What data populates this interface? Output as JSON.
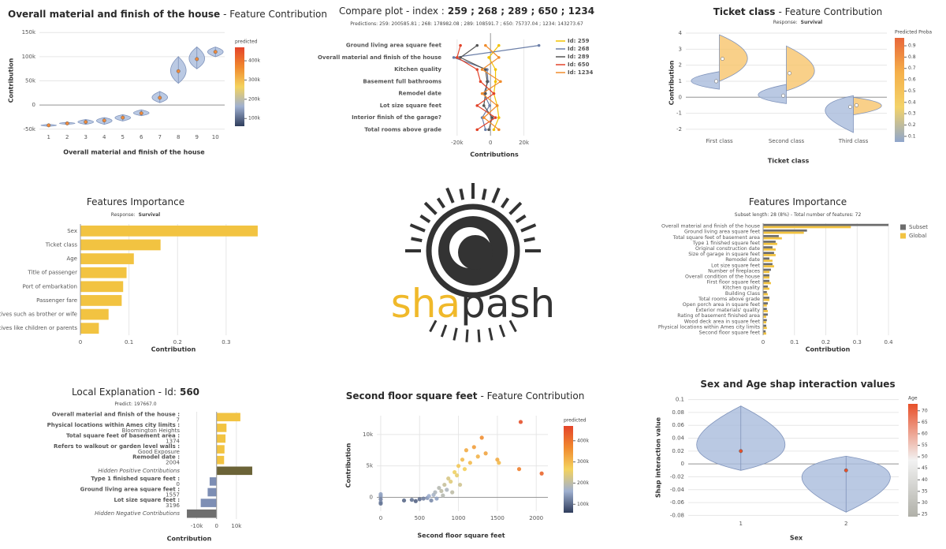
{
  "logo": {
    "text_left": "sha",
    "text_right": "pash"
  },
  "chart_data": [
    {
      "type": "violin",
      "title": [
        {
          "text": "Overall material and finish of the house",
          "bold": true
        },
        {
          "text": "- Feature Contribution"
        }
      ],
      "xlabel": "Overall material and finish of the house",
      "ylabel": "Contribution",
      "categories": [
        "1",
        "2",
        "3",
        "4",
        "5",
        "6",
        "7",
        "8",
        "9",
        "10"
      ],
      "series": [
        {
          "color": "#a9bcdc",
          "min": [
            -44000,
            -40000,
            -40000,
            -40000,
            -33000,
            -22000,
            5000,
            45000,
            75000,
            100000
          ],
          "median": [
            -42000,
            -38000,
            -35000,
            -32000,
            -26000,
            -17000,
            15000,
            70000,
            95000,
            110000
          ],
          "max": [
            -40000,
            -36000,
            -30000,
            -26000,
            -20000,
            -10000,
            28000,
            100000,
            120000,
            120000
          ]
        }
      ],
      "point_color": "#f08a3c",
      "ylim": [
        -52000,
        152000
      ],
      "yticks": [
        {
          "value": -50000,
          "label": "-50k"
        },
        0,
        {
          "value": 50000,
          "label": "50k"
        },
        {
          "value": 100000,
          "label": "100k"
        },
        {
          "value": 150000,
          "label": "150k"
        }
      ],
      "grid": true,
      "colorbar": {
        "title": "predicted",
        "lim": [
          60000,
          470000
        ],
        "colors": [
          "#2f3d5c",
          "#9fb0d0",
          "#f4d35e",
          "#f0892e",
          "#e4442a"
        ],
        "ticks": [
          {
            "value": 100000,
            "label": "100k"
          },
          {
            "value": 200000,
            "label": "200k"
          },
          {
            "value": 300000,
            "label": "300k"
          },
          {
            "value": 400000,
            "label": "400k"
          }
        ]
      }
    },
    {
      "type": "line",
      "title": [
        {
          "text": "Compare plot - index :"
        },
        {
          "text": "259 ; 268 ; 289 ; 650 ; 1234",
          "bold": true
        }
      ],
      "subtitle": [
        {
          "text": "Predictions: 259: 200585.81 ; 268: 178982.08 ; 289: 108591.7 ; 650: 75737.04 ; 1234: 143273.67"
        }
      ],
      "xlabel": "Contributions",
      "categories": [
        "Ground living area square feet",
        "Overall material and finish of the house",
        "Kitchen quality",
        "Basement full bathrooms",
        "Remodel date",
        "Lot size square feet",
        "Interior finish of the garage?",
        "Total rooms above grade"
      ],
      "series": [
        {
          "name": "Id: 259",
          "color": "#f2c200",
          "values": [
            5000,
            -1000,
            3000,
            3000,
            2000,
            4000,
            5000,
            2000
          ]
        },
        {
          "name": "Id: 268",
          "color": "#6c7fa8",
          "values": [
            29000,
            -22000,
            -2000,
            -1500,
            -4000,
            -500,
            -5000,
            -3000
          ]
        },
        {
          "name": "Id: 289",
          "color": "#555555",
          "values": [
            -8000,
            -18000,
            -3000,
            -2000,
            -3000,
            -4000,
            1000,
            -1000
          ]
        },
        {
          "name": "Id: 650",
          "color": "#e2432a",
          "values": [
            -18000,
            -20000,
            -8000,
            -6000,
            2000,
            -8000,
            3000,
            -8000
          ]
        },
        {
          "name": "Id: 1234",
          "color": "#f08c2c",
          "values": [
            -3000,
            5000,
            -5000,
            6000,
            -5000,
            4000,
            -4000,
            5000
          ]
        }
      ],
      "xlim": [
        -27000,
        32000
      ],
      "xticks": [
        {
          "value": -20000,
          "label": "-20k"
        },
        0,
        {
          "value": 20000,
          "label": "20k"
        }
      ],
      "grid": true
    },
    {
      "type": "violin",
      "title": [
        {
          "text": "Ticket class",
          "bold": true
        },
        {
          "text": "- Feature Contribution"
        }
      ],
      "subtitle": [
        {
          "text": "Response:"
        },
        {
          "text": "Survival",
          "bold": true
        }
      ],
      "xlabel": "Ticket class",
      "ylabel": "Contribution",
      "categories": [
        "First class",
        "Second class",
        "Third class"
      ],
      "series": [
        {
          "color": "#a9bcdc",
          "min": [
            0.5,
            -0.4,
            -2.2
          ],
          "median": [
            1.0,
            0.1,
            -0.6
          ],
          "max": [
            1.6,
            0.8,
            0.1
          ]
        },
        {
          "color": "#f8c46c",
          "min": [
            1.0,
            0.4,
            -1.1
          ],
          "median": [
            2.4,
            1.5,
            -0.5
          ],
          "max": [
            3.9,
            3.2,
            0.0
          ]
        }
      ],
      "ylim": [
        -2.3,
        4.2
      ],
      "yticks": [
        -2,
        -1,
        0,
        1,
        2,
        3,
        4
      ],
      "grid": true,
      "colorbar": {
        "title": "Predicted Proba",
        "lim": [
          0.05,
          0.97
        ],
        "colors": [
          "#8fa6cc",
          "#f3d36a",
          "#f5b04a",
          "#e8673a"
        ],
        "ticks": [
          0.1,
          0.2,
          0.3,
          0.4,
          0.5,
          0.6,
          0.7,
          0.8,
          0.9
        ]
      }
    },
    {
      "type": "hbar",
      "title": [
        {
          "text": "Features Importance"
        }
      ],
      "subtitle": [
        {
          "text": "Response:"
        },
        {
          "text": "Survival",
          "bold": true
        }
      ],
      "xlabel": "Contribution",
      "categories": [
        "Sex",
        "Ticket class",
        "Age",
        "Title of passenger",
        "Port of embarkation",
        "Passenger fare",
        "Relatives such as brother or wife",
        "Relatives like children or parents"
      ],
      "values": [
        0.365,
        0.165,
        0.11,
        0.095,
        0.088,
        0.085,
        0.058,
        0.038
      ],
      "color": "#f2c341",
      "xlim": [
        0,
        0.37
      ],
      "xticks": [
        0,
        0.1,
        0.2,
        0.3
      ],
      "grid": true
    },
    {
      "type": "hbar",
      "title": [
        {
          "text": "Features Importance"
        }
      ],
      "subtitle": [
        {
          "text": "Subset length: 28 (8%) - Total number of features: 72"
        }
      ],
      "xlabel": "Contribution",
      "categories": [
        "Overall material and finish of the house",
        "Ground living area square feet",
        "Total square feet of basement area",
        "Type 1 finished square feet",
        "Original construction date",
        "Size of garage in square feet",
        "Remodel date",
        "Lot size square feet",
        "Number of fireplaces",
        "Overall condition of the house",
        "First floor square feet",
        "Kitchen quality",
        "Building Class",
        "Total rooms above grade",
        "Open porch area in square feet",
        "Exterior materials' quality",
        "Rating of basement finished area",
        "Wood deck area in square feet",
        "Physical locations within Ames city limits",
        "Second floor square feet"
      ],
      "series": [
        {
          "name": "Subset",
          "color": "#6d6d6d",
          "values": [
            0.4,
            0.14,
            0.05,
            0.04,
            0.03,
            0.035,
            0.02,
            0.03,
            0.025,
            0.02,
            0.02,
            0.015,
            0.012,
            0.02,
            0.015,
            0.012,
            0.015,
            0.012,
            0.01,
            0.008
          ]
        },
        {
          "name": "Global",
          "color": "#f2c341",
          "values": [
            0.28,
            0.13,
            0.06,
            0.045,
            0.04,
            0.04,
            0.03,
            0.035,
            0.02,
            0.02,
            0.025,
            0.02,
            0.015,
            0.02,
            0.012,
            0.015,
            0.01,
            0.01,
            0.012,
            0.01
          ]
        }
      ],
      "xlim": [
        0,
        0.42
      ],
      "xticks": [
        0,
        0.1,
        0.2,
        0.3,
        0.4
      ],
      "grid": true
    },
    {
      "type": "hbar",
      "title": [
        {
          "text": "Local Explanation - Id:"
        },
        {
          "text": "560",
          "bold": true
        }
      ],
      "subtitle": [
        {
          "text": "Predict: 197667.0"
        }
      ],
      "xlabel": "Contribution",
      "label_bold": true,
      "categories": [
        "Overall material and finish of the house :",
        "Physical locations within Ames city limits :",
        "Total square feet of basement area :",
        "Refers to walkout or garden level walls :",
        "Remodel date :",
        "Hidden Positive Contributions",
        "Type 1 finished square feet :",
        "Ground living area square feet :",
        "Lot size square feet :",
        "Hidden Negative Contributions"
      ],
      "feature_values": [
        "7",
        "Bloomington Heights",
        "1374",
        "Good Exposure",
        "2004",
        null,
        "0",
        "1557",
        "3196",
        null
      ],
      "values": [
        12000,
        5000,
        4500,
        4000,
        3800,
        18000,
        -3500,
        -4500,
        -8000,
        -15000
      ],
      "colors": [
        "#f2c341",
        "#f2c341",
        "#f2c341",
        "#f2c341",
        "#f2c341",
        "#6b6337",
        "#7d8eb4",
        "#7d8eb4",
        "#7d8eb4",
        "#6e6e6e"
      ],
      "xlim": [
        -17000,
        20000
      ],
      "xticks": [
        {
          "value": -10000,
          "label": "-10k"
        },
        0,
        {
          "value": 10000,
          "label": "10k"
        }
      ],
      "grid": true
    },
    {
      "type": "scatter",
      "title": [
        {
          "text": "Second floor square feet",
          "bold": true
        },
        {
          "text": "- Feature Contribution"
        }
      ],
      "xlabel": "Second floor square feet",
      "ylabel": "Contribution",
      "x": [
        0,
        0,
        0,
        0,
        0,
        300,
        400,
        450,
        500,
        550,
        600,
        620,
        650,
        680,
        700,
        720,
        750,
        780,
        800,
        820,
        850,
        870,
        900,
        920,
        950,
        980,
        1000,
        1020,
        1050,
        1080,
        1100,
        1150,
        1200,
        1250,
        1300,
        1350,
        1500,
        1520,
        1800,
        1780,
        2070
      ],
      "values": [
        -800,
        200,
        -300,
        -1000,
        500,
        -500,
        -400,
        -600,
        -300,
        -200,
        -100,
        200,
        -500,
        400,
        800,
        -200,
        1500,
        1000,
        300,
        2000,
        1200,
        3000,
        2500,
        800,
        4000,
        3500,
        5000,
        2000,
        6000,
        4500,
        7500,
        5500,
        8000,
        6500,
        9500,
        7000,
        6000,
        5500,
        12000,
        4500,
        3800
      ],
      "predicted": [
        130000,
        140000,
        120000,
        110000,
        150000,
        100000,
        110000,
        95000,
        105000,
        120000,
        140000,
        160000,
        130000,
        170000,
        180000,
        150000,
        190000,
        200000,
        190000,
        210000,
        180000,
        230000,
        240000,
        200000,
        260000,
        250000,
        280000,
        220000,
        300000,
        270000,
        320000,
        300000,
        340000,
        310000,
        360000,
        330000,
        320000,
        300000,
        450000,
        380000,
        420000
      ],
      "xlim": [
        -50,
        2150
      ],
      "ylim": [
        -2200,
        13000
      ],
      "xticks": [
        0,
        500,
        1000,
        1500,
        2000
      ],
      "yticks": [
        0,
        {
          "value": 5000,
          "label": "5k"
        },
        {
          "value": 10000,
          "label": "10k"
        }
      ],
      "grid": true,
      "colorbar": {
        "title": "predicted",
        "lim": [
          60000,
          470000
        ],
        "colors": [
          "#2f3d5c",
          "#9fb0d0",
          "#f4d35e",
          "#f0892e",
          "#e4442a"
        ],
        "ticks": [
          {
            "value": 100000,
            "label": "100k"
          },
          {
            "value": 200000,
            "label": "200k"
          },
          {
            "value": 300000,
            "label": "300k"
          },
          {
            "value": 400000,
            "label": "400k"
          }
        ]
      }
    },
    {
      "type": "violin",
      "title": [
        {
          "text": "Sex and Age shap interaction values",
          "bold": true
        }
      ],
      "xlabel": "Sex",
      "ylabel": "Shap interaction value",
      "categories": [
        "1",
        "2"
      ],
      "series": [
        {
          "color": "#a9bcdc",
          "min": [
            -0.01,
            -0.075
          ],
          "median": [
            0.02,
            -0.01
          ],
          "max": [
            0.09,
            0.012
          ]
        }
      ],
      "point_color": "#e8502a",
      "ylim": [
        -0.082,
        0.102
      ],
      "yticks": [
        -0.08,
        -0.06,
        -0.04,
        -0.02,
        0,
        0.02,
        0.04,
        0.06,
        0.08,
        0.1
      ],
      "grid": true,
      "colorbar": {
        "title": "Age",
        "lim": [
          24,
          73
        ],
        "colors": [
          "#b0b0a8",
          "#f2f2f2",
          "#e8502a"
        ],
        "ticks": [
          25,
          30,
          35,
          40,
          45,
          50,
          55,
          60,
          65,
          70
        ]
      }
    }
  ]
}
